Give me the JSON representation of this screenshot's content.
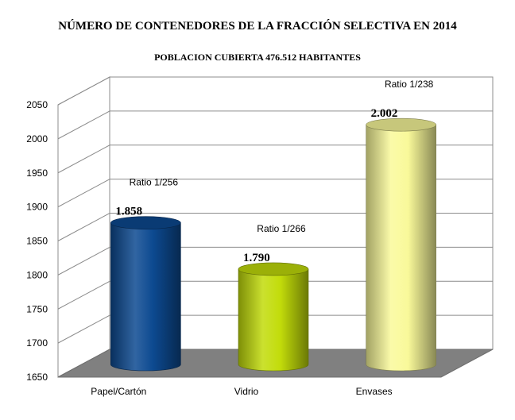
{
  "chart_data": {
    "type": "bar",
    "title": "NÚMERO DE CONTENEDORES DE LA FRACCIÓN SELECTIVA EN 2014",
    "subtitle": "POBLACION CUBIERTA 476.512 HABITANTES",
    "categories": [
      "Papel/Cartón",
      "Vidrio",
      "Envases"
    ],
    "values": [
      1858,
      1790,
      2002
    ],
    "value_labels": [
      "1.858",
      "1.790",
      "2.002"
    ],
    "annotations": [
      "Ratio 1/256",
      "Ratio 1/266",
      "Ratio 1/238"
    ],
    "colors": [
      "#0d4a91",
      "#c2dc0a",
      "#f9f99a"
    ],
    "ylim": [
      1650,
      2050
    ],
    "yticks": [
      "1650",
      "1700",
      "1750",
      "1800",
      "1850",
      "1900",
      "1950",
      "2000",
      "2050"
    ],
    "grid": true,
    "style": "3d-cylinder",
    "floor_color": "#808080",
    "xlabel": "",
    "ylabel": ""
  }
}
